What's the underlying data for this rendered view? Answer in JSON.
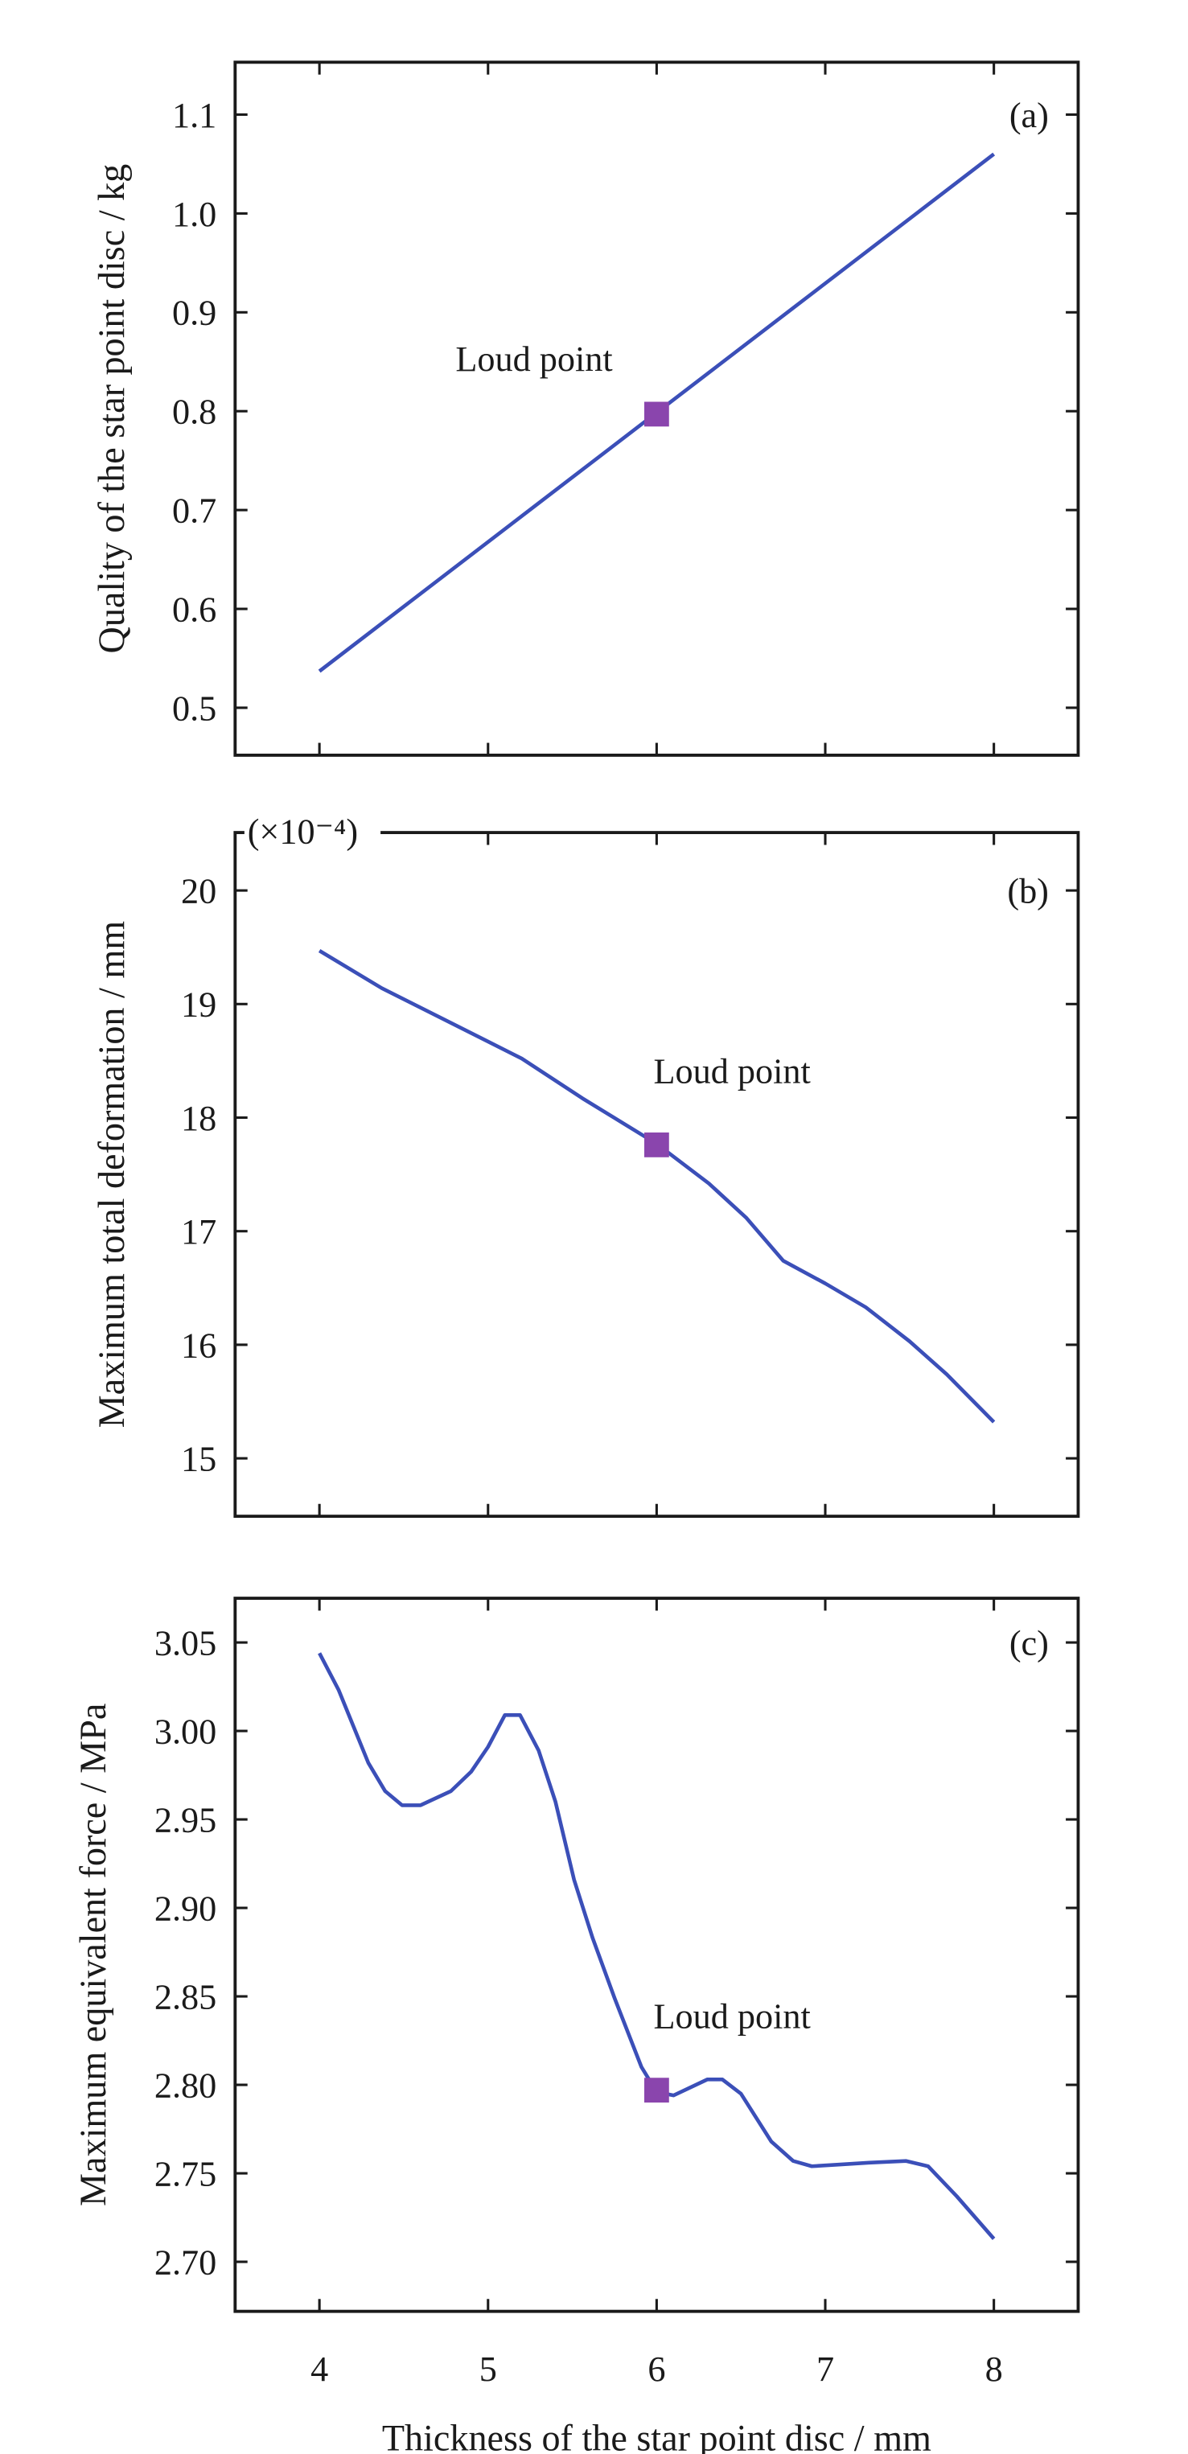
{
  "colors": {
    "line": "#3b4fb8",
    "marker": "#8a45ad",
    "frame": "#1a1a1a"
  },
  "chart_data": [
    {
      "type": "line",
      "panel_label": "(a)",
      "ylabel": "Quality of the star point disc / kg",
      "xlabel": "",
      "xlim": [
        3.5,
        8.5
      ],
      "ylim": [
        0.452,
        1.153
      ],
      "xticks": [
        4,
        5,
        6,
        7,
        8
      ],
      "xtick_labels": [],
      "yticks": [
        0.5,
        0.6,
        0.7,
        0.8,
        0.9,
        1.0,
        1.1
      ],
      "ytick_labels": [
        "0.5",
        "0.6",
        "0.7",
        "0.8",
        "0.9",
        "1.0",
        "1.1"
      ],
      "multiplier": "",
      "x": [
        4,
        8
      ],
      "y": [
        0.537,
        1.06
      ],
      "marker": {
        "x": 6,
        "y": 0.797,
        "label": "Loud point"
      },
      "grid": false
    },
    {
      "type": "line",
      "panel_label": "(b)",
      "ylabel": "Maximum total deformation / mm",
      "xlabel": "",
      "xlim": [
        3.5,
        8.5
      ],
      "ylim": [
        14.49,
        20.51
      ],
      "xticks": [
        4,
        5,
        6,
        7,
        8
      ],
      "xtick_labels": [],
      "yticks": [
        15,
        16,
        17,
        18,
        19,
        20
      ],
      "ytick_labels": [
        "15",
        "16",
        "17",
        "18",
        "19",
        "20"
      ],
      "multiplier": "(×10⁻⁴)",
      "x": [
        4,
        4.37,
        5,
        5.2,
        5.56,
        6,
        6.31,
        6.53,
        6.75,
        7,
        7.24,
        7.5,
        7.72,
        8
      ],
      "y": [
        19.47,
        19.14,
        18.67,
        18.52,
        18.17,
        17.77,
        17.42,
        17.12,
        16.74,
        16.54,
        16.33,
        16.03,
        15.74,
        15.32
      ],
      "marker": {
        "x": 6,
        "y": 17.76,
        "label": "Loud point"
      },
      "grid": false
    },
    {
      "type": "line",
      "panel_label": "(c)",
      "ylabel": "Maximum equivalent force / MPa",
      "xlabel": "Thickness of the star point disc / mm",
      "xlim": [
        3.5,
        8.5
      ],
      "ylim": [
        2.672,
        3.075
      ],
      "xticks": [
        4,
        5,
        6,
        7,
        8
      ],
      "xtick_labels": [
        "4",
        "5",
        "6",
        "7",
        "8"
      ],
      "yticks": [
        2.7,
        2.75,
        2.8,
        2.85,
        2.9,
        2.95,
        3.0,
        3.05
      ],
      "ytick_labels": [
        "2.70",
        "2.75",
        "2.80",
        "2.85",
        "2.90",
        "2.95",
        "3.00",
        "3.05"
      ],
      "multiplier": "",
      "x": [
        4,
        4.115,
        4.29,
        4.39,
        4.49,
        4.6,
        4.78,
        4.9,
        5,
        5.1,
        5.19,
        5.3,
        5.4,
        5.51,
        5.62,
        5.75,
        5.91,
        6,
        6.1,
        6.3,
        6.39,
        6.5,
        6.68,
        6.81,
        6.92,
        7.08,
        7.26,
        7.48,
        7.61,
        7.78,
        8
      ],
      "y": [
        3.044,
        3.023,
        2.982,
        2.966,
        2.958,
        2.958,
        2.966,
        2.977,
        2.991,
        3.009,
        3.009,
        2.989,
        2.96,
        2.916,
        2.883,
        2.849,
        2.81,
        2.796,
        2.794,
        2.803,
        2.803,
        2.795,
        2.768,
        2.757,
        2.754,
        2.755,
        2.756,
        2.757,
        2.754,
        2.737,
        2.713
      ],
      "marker": {
        "x": 6,
        "y": 2.797,
        "label": "Loud point"
      },
      "grid": false
    }
  ]
}
